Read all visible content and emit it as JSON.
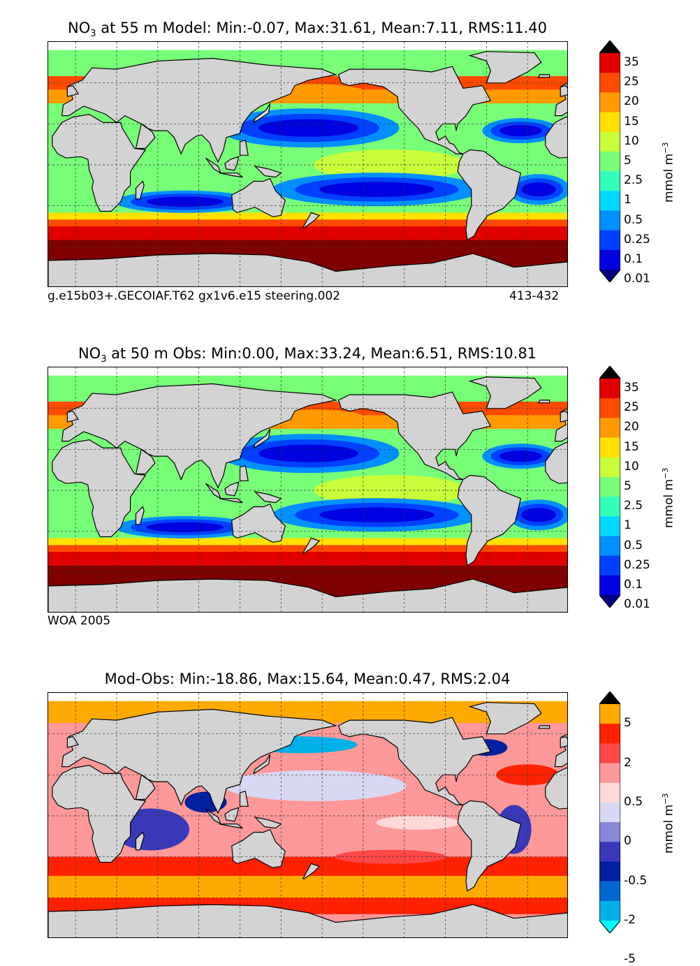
{
  "panels": [
    {
      "id": "model",
      "title": {
        "field": "NO",
        "sub": "3",
        "rest": " at 55 m Model: Min:-0.07, Max:31.61, Mean:7.11, RMS:11.40"
      },
      "footer_left": "g.e15b03+.GECOIAF.T62 gx1v6.e15 steering.002",
      "footer_right": "413-432",
      "colorbar": {
        "labels": [
          "35",
          "25",
          "20",
          "15",
          "10",
          "5",
          "2.5",
          "1",
          "0.5",
          "0.25",
          "0.1",
          "0.01"
        ],
        "colors": [
          "#7f0000",
          "#e00000",
          "#ff4a00",
          "#ff9a00",
          "#ffe000",
          "#c8ff3a",
          "#78ff78",
          "#33ffbb",
          "#00d8ff",
          "#0090ff",
          "#0040ff",
          "#0000e0",
          "#000080"
        ],
        "unit": "mmol m",
        "unit_sup": "−3"
      }
    },
    {
      "id": "obs",
      "title": {
        "field": "NO",
        "sub": "3",
        "rest": " at 50 m Obs: Min:0.00, Max:33.24, Mean:6.51, RMS:10.81"
      },
      "footer_left": "WOA 2005",
      "footer_right": "",
      "colorbar": {
        "labels": [
          "35",
          "25",
          "20",
          "15",
          "10",
          "5",
          "2.5",
          "1",
          "0.5",
          "0.25",
          "0.1",
          "0.01"
        ],
        "colors": [
          "#7f0000",
          "#e00000",
          "#ff4a00",
          "#ff9a00",
          "#ffe000",
          "#c8ff3a",
          "#78ff78",
          "#33ffbb",
          "#00d8ff",
          "#0090ff",
          "#0040ff",
          "#0000e0",
          "#000080"
        ],
        "unit": "mmol m",
        "unit_sup": "−3"
      }
    },
    {
      "id": "diff",
      "title": {
        "field": "Mod-Obs: Min:-18.86, Max:15.64, Mean:0.47, RMS:2.04",
        "sub": "",
        "rest": ""
      },
      "footer_left": "",
      "footer_right": "",
      "colorbar": {
        "labels": [
          "5",
          "2",
          "0.5",
          "0",
          "-0.5",
          "-2",
          "-5"
        ],
        "colors": [
          "#ffff00",
          "#ffaa00",
          "#ff2200",
          "#ff4848",
          "#ff9898",
          "#ffd8d8",
          "#d8d8f4",
          "#8888d8",
          "#3838b8",
          "#0020a0",
          "#0068d0",
          "#00b0e8",
          "#00ffff"
        ],
        "unit": "mmol m",
        "unit_sup": "−3"
      }
    }
  ],
  "chart_data": [
    {
      "type": "heatmap",
      "title": "NO3 at 55 m Model: Min:-0.07, Max:31.61, Mean:7.11, RMS:11.40",
      "variable": "NO3",
      "depth": "55 m",
      "source": "Model",
      "stats": {
        "min": -0.07,
        "max": 31.61,
        "mean": 7.11,
        "rms": 11.4
      },
      "colorbar_levels": [
        0.01,
        0.1,
        0.25,
        0.5,
        1,
        2.5,
        5,
        10,
        15,
        20,
        25,
        35
      ],
      "colorbar_unit": "mmol m^-3",
      "grid": true,
      "annotations": [
        "g.e15b03+.GECOIAF.T62 gx1v6.e15 steering.002",
        "413-432"
      ]
    },
    {
      "type": "heatmap",
      "title": "NO3 at 50 m Obs: Min:0.00, Max:33.24, Mean:6.51, RMS:10.81",
      "variable": "NO3",
      "depth": "50 m",
      "source": "Obs",
      "stats": {
        "min": 0.0,
        "max": 33.24,
        "mean": 6.51,
        "rms": 10.81
      },
      "colorbar_levels": [
        0.01,
        0.1,
        0.25,
        0.5,
        1,
        2.5,
        5,
        10,
        15,
        20,
        25,
        35
      ],
      "colorbar_unit": "mmol m^-3",
      "grid": true,
      "annotations": [
        "WOA 2005"
      ]
    },
    {
      "type": "heatmap",
      "title": "Mod-Obs: Min:-18.86, Max:15.64, Mean:0.47, RMS:2.04",
      "source": "Mod-Obs",
      "stats": {
        "min": -18.86,
        "max": 15.64,
        "mean": 0.47,
        "rms": 2.04
      },
      "colorbar_levels": [
        -5,
        -2,
        -0.5,
        0,
        0.5,
        2,
        5
      ],
      "colorbar_unit": "mmol m^-3",
      "grid": true
    }
  ]
}
